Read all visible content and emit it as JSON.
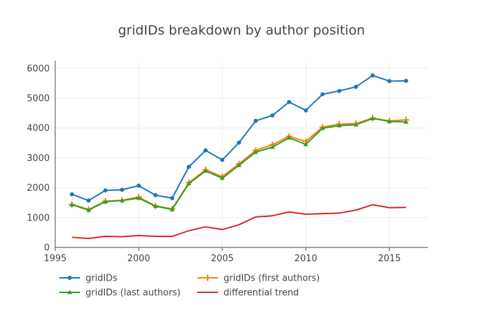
{
  "chart_data": {
    "type": "line",
    "title": "gridIDs breakdown by author position",
    "xlabel": "",
    "ylabel": "",
    "xlim": [
      1995,
      2017.3
    ],
    "ylim": [
      0,
      6250
    ],
    "x_ticks": [
      1995,
      2000,
      2005,
      2010,
      2015
    ],
    "y_ticks": [
      0,
      1000,
      2000,
      3000,
      4000,
      5000,
      6000
    ],
    "grid": true,
    "legend_placement": "bottom-left",
    "x": [
      1996,
      1997,
      1998,
      1999,
      2000,
      2001,
      2002,
      2003,
      2004,
      2005,
      2006,
      2007,
      2008,
      2009,
      2010,
      2011,
      2012,
      2013,
      2014,
      2015,
      2016
    ],
    "series": [
      {
        "name": "gridIDs",
        "color": "#1f77b4",
        "marker": "circle",
        "values": [
          1780,
          1570,
          1910,
          1930,
          2070,
          1750,
          1650,
          2700,
          3250,
          2930,
          3510,
          4240,
          4420,
          4870,
          4590,
          5130,
          5240,
          5380,
          5760,
          5570,
          5580
        ]
      },
      {
        "name": "gridIDs (first authors)",
        "color": "#ff7f0e",
        "marker": "cross",
        "values": [
          1440,
          1270,
          1550,
          1580,
          1690,
          1390,
          1290,
          2170,
          2600,
          2370,
          2800,
          3250,
          3440,
          3720,
          3550,
          4030,
          4130,
          4150,
          4330,
          4240,
          4270
        ]
      },
      {
        "name": "gridIDs (last authors)",
        "color": "#2ca02c",
        "marker": "triangle",
        "values": [
          1430,
          1250,
          1530,
          1570,
          1650,
          1380,
          1270,
          2140,
          2560,
          2320,
          2750,
          3190,
          3360,
          3670,
          3450,
          3990,
          4080,
          4110,
          4320,
          4220,
          4200
        ]
      },
      {
        "name": "differential trend",
        "color": "#d62728",
        "marker": "none",
        "values": [
          340,
          300,
          370,
          360,
          400,
          370,
          370,
          560,
          690,
          600,
          760,
          1020,
          1060,
          1190,
          1110,
          1130,
          1150,
          1250,
          1430,
          1330,
          1340
        ]
      }
    ]
  }
}
